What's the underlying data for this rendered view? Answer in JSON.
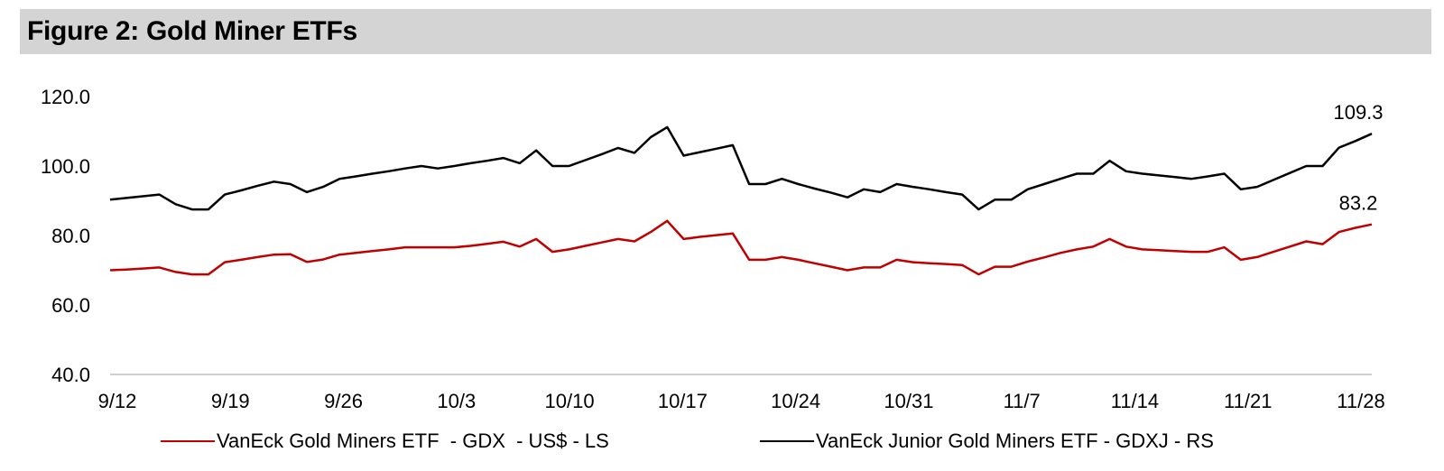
{
  "title": "Figure 2: Gold Miner ETFs",
  "chart_data": {
    "type": "line",
    "title": "Figure 2: Gold Miner ETFs",
    "xlabel": "",
    "ylabel": "",
    "ylim": [
      40,
      120
    ],
    "yticks": [
      "120.0",
      "100.0",
      "80.0",
      "60.0",
      "40.0"
    ],
    "xticks": [
      "9/12",
      "9/19",
      "9/26",
      "10/3",
      "10/10",
      "10/17",
      "10/24",
      "10/31",
      "11/7",
      "11/14",
      "11/21",
      "11/28"
    ],
    "grid": false,
    "legend": "bottom",
    "series": [
      {
        "name": "VanEck Gold Miners ETF  - GDX  - US$ - LS",
        "color": "#c00000",
        "end_label": "83.2",
        "points": [
          [
            0,
            70.0
          ],
          [
            1,
            70.2
          ],
          [
            2,
            70.5
          ],
          [
            3,
            70.8
          ],
          [
            4,
            69.5
          ],
          [
            5,
            68.8
          ],
          [
            6,
            68.8
          ],
          [
            7,
            72.3
          ],
          [
            8,
            73.0
          ],
          [
            9,
            73.8
          ],
          [
            10,
            74.5
          ],
          [
            11,
            74.6
          ],
          [
            12,
            72.4
          ],
          [
            13,
            73.1
          ],
          [
            14,
            74.5
          ],
          [
            15,
            75.0
          ],
          [
            16,
            75.5
          ],
          [
            17,
            76.0
          ],
          [
            18,
            76.6
          ],
          [
            19,
            76.6
          ],
          [
            20,
            76.6
          ],
          [
            21,
            76.6
          ],
          [
            22,
            77.0
          ],
          [
            23,
            77.6
          ],
          [
            24,
            78.2
          ],
          [
            25,
            76.8
          ],
          [
            26,
            79.0
          ],
          [
            27,
            75.3
          ],
          [
            28,
            76.0
          ],
          [
            29,
            77.0
          ],
          [
            30,
            78.0
          ],
          [
            31,
            79.0
          ],
          [
            32,
            78.3
          ],
          [
            33,
            81.0
          ],
          [
            34,
            84.2
          ],
          [
            35,
            79.0
          ],
          [
            36,
            79.6
          ],
          [
            37,
            80.1
          ],
          [
            38,
            80.6
          ],
          [
            39,
            73.0
          ],
          [
            40,
            73.0
          ],
          [
            41,
            73.8
          ],
          [
            42,
            73.0
          ],
          [
            43,
            72.0
          ],
          [
            44,
            71.0
          ],
          [
            45,
            70.0
          ],
          [
            46,
            70.8
          ],
          [
            47,
            70.8
          ],
          [
            48,
            73.0
          ],
          [
            49,
            72.3
          ],
          [
            50,
            72.0
          ],
          [
            51,
            71.8
          ],
          [
            52,
            71.5
          ],
          [
            53,
            68.8
          ],
          [
            54,
            71.0
          ],
          [
            55,
            71.0
          ],
          [
            56,
            72.5
          ],
          [
            57,
            73.7
          ],
          [
            58,
            75.0
          ],
          [
            59,
            76.0
          ],
          [
            60,
            76.8
          ],
          [
            61,
            79.0
          ],
          [
            62,
            76.8
          ],
          [
            63,
            76.0
          ],
          [
            64,
            75.8
          ],
          [
            65,
            75.5
          ],
          [
            66,
            75.3
          ],
          [
            67,
            75.3
          ],
          [
            68,
            76.6
          ],
          [
            69,
            73.0
          ],
          [
            70,
            73.8
          ],
          [
            71,
            75.3
          ],
          [
            72,
            76.8
          ],
          [
            73,
            78.3
          ],
          [
            74,
            77.5
          ],
          [
            75,
            81.0
          ],
          [
            76,
            82.2
          ],
          [
            77,
            83.2
          ]
        ]
      },
      {
        "name": "VanEck Junior Gold Miners ETF - GDXJ - RS",
        "color": "#000000",
        "end_label": "109.3",
        "points": [
          [
            0,
            90.3
          ],
          [
            1,
            90.8
          ],
          [
            2,
            91.3
          ],
          [
            3,
            91.8
          ],
          [
            4,
            89.0
          ],
          [
            5,
            87.5
          ],
          [
            6,
            87.5
          ],
          [
            7,
            91.8
          ],
          [
            8,
            93.0
          ],
          [
            9,
            94.3
          ],
          [
            10,
            95.5
          ],
          [
            11,
            94.8
          ],
          [
            12,
            92.5
          ],
          [
            13,
            94.0
          ],
          [
            14,
            96.3
          ],
          [
            15,
            97.0
          ],
          [
            16,
            97.8
          ],
          [
            17,
            98.5
          ],
          [
            18,
            99.3
          ],
          [
            19,
            100.0
          ],
          [
            20,
            99.3
          ],
          [
            21,
            100.0
          ],
          [
            22,
            100.8
          ],
          [
            23,
            101.5
          ],
          [
            24,
            102.3
          ],
          [
            25,
            100.8
          ],
          [
            26,
            104.5
          ],
          [
            27,
            100.0
          ],
          [
            28,
            100.0
          ],
          [
            29,
            101.7
          ],
          [
            30,
            103.4
          ],
          [
            31,
            105.2
          ],
          [
            32,
            103.8
          ],
          [
            33,
            108.3
          ],
          [
            34,
            111.2
          ],
          [
            35,
            103.0
          ],
          [
            36,
            104.0
          ],
          [
            37,
            105.0
          ],
          [
            38,
            106.0
          ],
          [
            39,
            94.8
          ],
          [
            40,
            94.8
          ],
          [
            41,
            96.3
          ],
          [
            42,
            94.8
          ],
          [
            43,
            93.5
          ],
          [
            44,
            92.3
          ],
          [
            45,
            91.0
          ],
          [
            46,
            93.3
          ],
          [
            47,
            92.5
          ],
          [
            48,
            94.8
          ],
          [
            49,
            94.0
          ],
          [
            50,
            93.3
          ],
          [
            51,
            92.5
          ],
          [
            52,
            91.8
          ],
          [
            53,
            87.5
          ],
          [
            54,
            90.3
          ],
          [
            55,
            90.3
          ],
          [
            56,
            93.3
          ],
          [
            57,
            94.8
          ],
          [
            58,
            96.3
          ],
          [
            59,
            97.8
          ],
          [
            60,
            97.8
          ],
          [
            61,
            101.5
          ],
          [
            62,
            98.5
          ],
          [
            63,
            97.8
          ],
          [
            64,
            97.3
          ],
          [
            65,
            96.8
          ],
          [
            66,
            96.3
          ],
          [
            67,
            97.0
          ],
          [
            68,
            97.8
          ],
          [
            69,
            93.3
          ],
          [
            70,
            94.0
          ],
          [
            71,
            96.0
          ],
          [
            72,
            98.0
          ],
          [
            73,
            100.0
          ],
          [
            74,
            100.0
          ],
          [
            75,
            105.3
          ],
          [
            76,
            107.2
          ],
          [
            77,
            109.3
          ]
        ]
      }
    ]
  }
}
